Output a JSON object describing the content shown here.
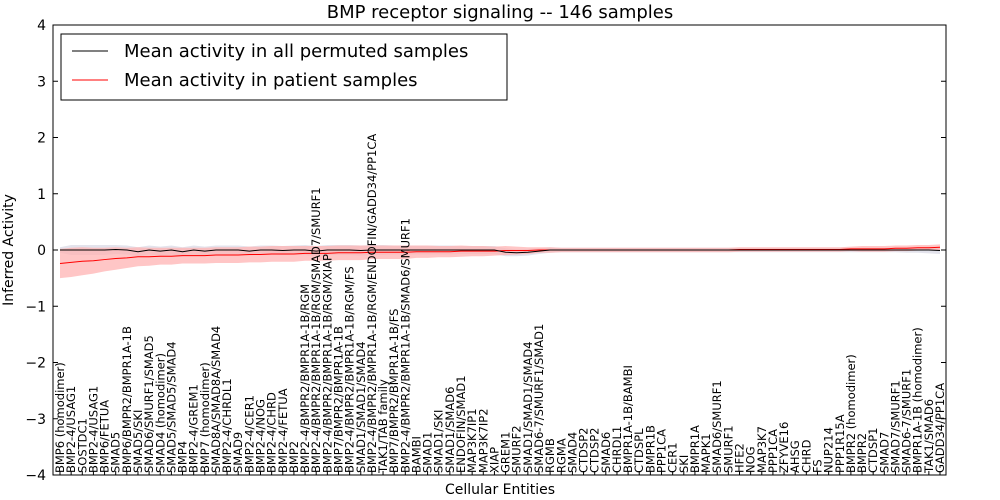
{
  "chart_data": {
    "type": "line",
    "title": "BMP receptor signaling -- 146 samples",
    "xlabel": "Cellular Entities",
    "ylabel": "Inferred Activity",
    "ylim": [
      -4,
      4
    ],
    "yticks": [
      -4,
      -3,
      -2,
      -1,
      0,
      1,
      2,
      3,
      4
    ],
    "yticklabels": [
      "−4",
      "−3",
      "−2",
      "−1",
      "0",
      "1",
      "2",
      "3",
      "4"
    ],
    "legend_position": "top-left",
    "categories": [
      "BMP6 (homodimer)",
      "BMP2-4/USAG1",
      "SOSTDC1",
      "BMP2-4/USAG1",
      "BMP6/FETUA",
      "SMAD5",
      "BMP6/BMPR2/BMPR1A-1B",
      "SMAD5/SKI",
      "SMAD6/SMURF1/SMAD5",
      "SMAD4 (homodimer)",
      "SMAD5/SMAD5/SMAD4",
      "BMP4",
      "BMP2-4/GREM1",
      "BMP7 (homodimer)",
      "SMAD8A/SMAD8A/SMAD4",
      "BMP2-4/CHRDL1",
      "SMAD9",
      "BMP2-4/CER1",
      "BMP2-4/NOG",
      "BMP2-4/CHRD",
      "BMP2-4/FETUA",
      "BMP2",
      "BMP2-4/BMPR2/BMPR1A-1B/RGM",
      "BMP2-4/BMPR2/BMPR1A-1B/RGM/SMAD7/SMURF1",
      "BMP2-4/BMPR2/BMPR1A-1B/RGM/XIAP",
      "BMP7/BMPR2/BMPR1A-1B",
      "BMP2-4/BMPR2/BMPR1A-1B/RGM/FS",
      "SMAD1/SMAD1/SMAD4",
      "BMP2-4/BMPR2/BMPR1A-1B/RGM/ENDOFIN/GADD34/PP1CA",
      "TAK1/TAB family",
      "BMP7/BMPR2/BMPR1A-1B/FS",
      "BMP2-4/BMPR2/BMPR1A-1B/SMAD6/SMURF1",
      "BAMBI",
      "SMAD1",
      "SMAD1/SKI",
      "SMAD1/SMAD6",
      "ENDOFIN/SMAD1",
      "MAP3K7IP1",
      "MAP3K7IP2",
      "XIAP",
      "GREM1",
      "SMURF2",
      "SMAD1/SMAD1/SMAD4",
      "SMAD6-7/SMURF1/SMAD1",
      "RGMB",
      "RGMA",
      "SMAD4",
      "CTDSP2",
      "CTDSP2",
      "SMAD6",
      "CHRDL1",
      "BMPR1A-1B/BAMBI",
      "CTDSPL",
      "BMPR1B",
      "PPP1CA",
      "CER1",
      "SKI",
      "BMPR1A",
      "MAPK1",
      "SMAD6/SMURF1",
      "SMURF1",
      "HFE2",
      "NOG",
      "MAP3K7",
      "PPP1CA",
      "ZFYVE16",
      "AHSG",
      "CHRD",
      "FS",
      "NUP214",
      "PPP1R15A",
      "BMPR2 (homodimer)",
      "BMPR2",
      "CTDSP1",
      "SMAD7",
      "SMAD7/SMURF1",
      "SMAD6-7/SMURF1",
      "BMPR1A-1B (homodimer)",
      "TAK1/SMAD6",
      "GADD34/PP1CA"
    ],
    "series": [
      {
        "name": "Mean activity in all permuted samples",
        "color": "#000000",
        "band_color": "#d9d9e6",
        "values": [
          0.0,
          0.0,
          0.0,
          0.0,
          0.0,
          0.01,
          0.0,
          -0.03,
          0.0,
          -0.02,
          0.0,
          -0.03,
          0.0,
          -0.02,
          0.0,
          0.0,
          0.0,
          -0.02,
          0.0,
          0.0,
          -0.01,
          0.0,
          0.0,
          -0.02,
          0.0,
          0.0,
          0.0,
          -0.01,
          0.0,
          0.0,
          0.0,
          0.0,
          0.0,
          0.0,
          0.0,
          0.0,
          0.0,
          0.0,
          0.0,
          0.0,
          -0.04,
          -0.05,
          -0.04,
          -0.02,
          0.0,
          0.0,
          0.0,
          0.0,
          0.0,
          0.0,
          0.0,
          0.0,
          0.0,
          0.0,
          0.0,
          0.0,
          0.0,
          0.0,
          0.0,
          0.0,
          0.0,
          0.0,
          0.0,
          0.0,
          0.0,
          0.0,
          0.0,
          0.0,
          0.0,
          0.0,
          0.0,
          0.0,
          0.0,
          0.0,
          0.0,
          0.0,
          0.0,
          0.0,
          0.0,
          -0.01
        ],
        "band": [
          0.05,
          0.09,
          0.09,
          0.09,
          0.09,
          0.08,
          0.08,
          0.08,
          0.08,
          0.08,
          0.08,
          0.08,
          0.08,
          0.08,
          0.08,
          0.08,
          0.08,
          0.08,
          0.08,
          0.08,
          0.08,
          0.08,
          0.09,
          0.09,
          0.09,
          0.09,
          0.09,
          0.09,
          0.09,
          0.09,
          0.08,
          0.08,
          0.08,
          0.08,
          0.08,
          0.08,
          0.07,
          0.07,
          0.07,
          0.07,
          0.07,
          0.06,
          0.06,
          0.05,
          0.05,
          0.04,
          0.04,
          0.04,
          0.04,
          0.04,
          0.04,
          0.04,
          0.04,
          0.04,
          0.04,
          0.04,
          0.04,
          0.04,
          0.04,
          0.04,
          0.04,
          0.04,
          0.04,
          0.04,
          0.04,
          0.04,
          0.04,
          0.04,
          0.04,
          0.04,
          0.04,
          0.04,
          0.04,
          0.04,
          0.04,
          0.04,
          0.05,
          0.05,
          0.06,
          0.06
        ]
      },
      {
        "name": "Mean activity in patient samples",
        "color": "#ff0000",
        "band_color": "#ffb3b3",
        "values": [
          -0.24,
          -0.22,
          -0.2,
          -0.19,
          -0.17,
          -0.15,
          -0.14,
          -0.12,
          -0.12,
          -0.11,
          -0.11,
          -0.1,
          -0.1,
          -0.1,
          -0.09,
          -0.09,
          -0.09,
          -0.08,
          -0.08,
          -0.07,
          -0.07,
          -0.07,
          -0.06,
          -0.06,
          -0.06,
          -0.05,
          -0.05,
          -0.05,
          -0.04,
          -0.04,
          -0.04,
          -0.04,
          -0.03,
          -0.03,
          -0.03,
          -0.03,
          -0.02,
          -0.02,
          -0.02,
          -0.02,
          -0.01,
          -0.01,
          -0.01,
          0.0,
          0.0,
          0.0,
          0.0,
          0.0,
          0.0,
          0.0,
          0.0,
          0.0,
          0.0,
          0.0,
          0.0,
          0.0,
          0.0,
          0.0,
          0.0,
          0.0,
          0.0,
          0.01,
          0.01,
          0.01,
          0.01,
          0.01,
          0.01,
          0.01,
          0.01,
          0.01,
          0.01,
          0.02,
          0.02,
          0.02,
          0.02,
          0.03,
          0.03,
          0.04,
          0.04,
          0.05
        ],
        "band": [
          0.26,
          0.26,
          0.25,
          0.23,
          0.21,
          0.2,
          0.18,
          0.17,
          0.16,
          0.15,
          0.15,
          0.14,
          0.14,
          0.14,
          0.14,
          0.14,
          0.14,
          0.14,
          0.14,
          0.14,
          0.14,
          0.14,
          0.13,
          0.13,
          0.13,
          0.13,
          0.13,
          0.13,
          0.12,
          0.12,
          0.12,
          0.12,
          0.11,
          0.11,
          0.1,
          0.1,
          0.1,
          0.09,
          0.09,
          0.08,
          0.08,
          0.07,
          0.06,
          0.05,
          0.05,
          0.04,
          0.04,
          0.04,
          0.04,
          0.04,
          0.04,
          0.04,
          0.04,
          0.04,
          0.04,
          0.04,
          0.04,
          0.04,
          0.04,
          0.04,
          0.04,
          0.04,
          0.04,
          0.04,
          0.04,
          0.04,
          0.04,
          0.04,
          0.04,
          0.04,
          0.04,
          0.04,
          0.05,
          0.05,
          0.05,
          0.05,
          0.05,
          0.05,
          0.05,
          0.05
        ]
      }
    ]
  }
}
